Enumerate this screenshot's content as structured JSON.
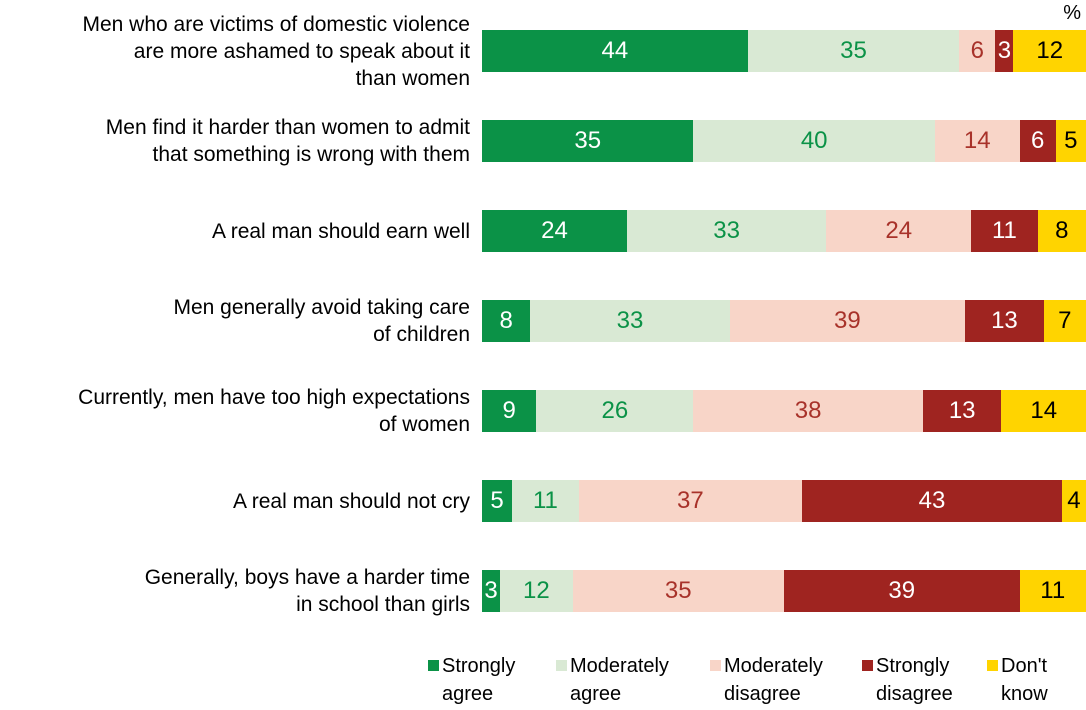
{
  "percent_label": "%",
  "colors": {
    "background": "#ffffff",
    "label_text": "#000000",
    "strongly_agree": "#0B9247",
    "moderately_agree": "#D9E9D4",
    "moderately_disagree": "#F8D5C8",
    "strongly_disagree": "#9F2420",
    "dont_know": "#FFD400"
  },
  "chart_data": {
    "type": "bar",
    "stacked": true,
    "orientation": "horizontal",
    "unit": "%",
    "xlim": [
      0,
      100
    ],
    "grid": false,
    "legend_position": "bottom",
    "categories": [
      "Men who are victims of domestic violence\nare more ashamed to speak about it\nthan women",
      "Men find it harder than women to admit\nthat something is wrong with them",
      "A real man should earn well",
      "Men generally avoid taking care\nof children",
      "Currently, men have too high expectations\nof women",
      "A real man should not cry",
      "Generally, boys have a harder time\nin school than girls"
    ],
    "series": [
      {
        "name": "Strongly agree",
        "legend_label": "Strongly\nagree",
        "color": "#0B9247",
        "text_color": "#FFFFFF",
        "values": [
          44,
          35,
          24,
          8,
          9,
          5,
          3
        ]
      },
      {
        "name": "Moderately agree",
        "legend_label": "Moderately\nagree",
        "color": "#D9E9D4",
        "text_color": "#0B9247",
        "values": [
          35,
          40,
          33,
          33,
          26,
          11,
          12
        ]
      },
      {
        "name": "Moderately disagree",
        "legend_label": "Moderately\ndisagree",
        "color": "#F8D5C8",
        "text_color": "#A8322A",
        "values": [
          6,
          14,
          24,
          39,
          38,
          37,
          35
        ]
      },
      {
        "name": "Strongly disagree",
        "legend_label": "Strongly\ndisagree",
        "color": "#9F2420",
        "text_color": "#FFFFFF",
        "values": [
          3,
          6,
          11,
          13,
          13,
          43,
          39
        ]
      },
      {
        "name": "Don't know",
        "legend_label": "Don't\nknow",
        "color": "#FFD400",
        "text_color": "#000000",
        "values": [
          12,
          5,
          8,
          7,
          14,
          4,
          11
        ]
      }
    ]
  }
}
